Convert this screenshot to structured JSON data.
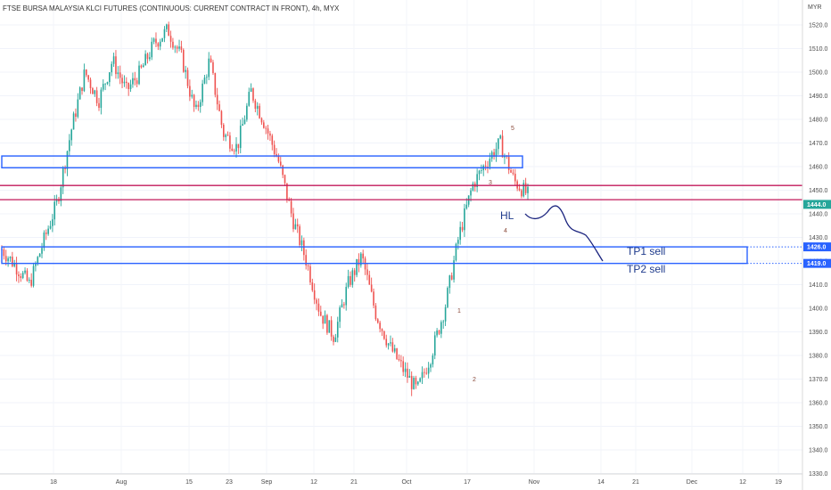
{
  "chart_data": {
    "type": "candlestick",
    "title": "FTSE BURSA MALAYSIA KLCI FUTURES (CONTINUOUS: CURRENT CONTRACT IN FRONT), 4h, MYX",
    "currency": "MYR",
    "y_ticks": [
      1520,
      1510,
      1500,
      1490,
      1480,
      1470,
      1460,
      1450,
      1440,
      1430,
      1420,
      1410,
      1400,
      1390,
      1380,
      1370,
      1360,
      1350,
      1340,
      1330
    ],
    "y_tick_labels": [
      "1520.0",
      "1510.0",
      "1500.0",
      "1490.0",
      "1480.0",
      "1470.0",
      "1460.0",
      "1450.0",
      "1440.0",
      "1430.0",
      "1420.0",
      "1410.0",
      "1400.0",
      "1390.0",
      "1380.0",
      "1370.0",
      "1360.0",
      "1350.0",
      "1340.0",
      "1330.0"
    ],
    "ylim": [
      1328,
      1532
    ],
    "x_tick_labels": [
      "18",
      "Aug",
      "15",
      "23",
      "Sep",
      "12",
      "21",
      "Oct",
      "17",
      "Nov",
      "14",
      "21",
      "Dec",
      "12",
      "19"
    ],
    "price_tags": [
      {
        "label": "1444.0",
        "value": 1444,
        "color": "#26a69a"
      },
      {
        "label": "1426.0",
        "value": 1426,
        "color": "#2962ff"
      },
      {
        "label": "1419.0",
        "value": 1419,
        "color": "#2962ff"
      }
    ],
    "zones": [
      {
        "low": 1459.5,
        "high": 1464.5,
        "color": "#2962ff"
      },
      {
        "low": 1419,
        "high": 1426,
        "color": "#2962ff",
        "note": "TP1 sell"
      }
    ],
    "lines": [
      {
        "value": 1452,
        "color": "#c2185b"
      },
      {
        "value": 1446,
        "color": "#c2185b"
      }
    ],
    "wave_labels": [
      "1",
      "2",
      "3",
      "4",
      "5"
    ],
    "annotations": [
      "HL",
      "TP1 sell",
      "TP2 sell"
    ],
    "anchor_path": [
      1425,
      1418,
      1410,
      1428,
      1445,
      1475,
      1500,
      1488,
      1505,
      1492,
      1500,
      1512,
      1518,
      1506,
      1482,
      1505,
      1474,
      1468,
      1492,
      1478,
      1462,
      1438,
      1420,
      1398,
      1388,
      1410,
      1422,
      1398,
      1384,
      1374,
      1365,
      1380,
      1400,
      1430,
      1452,
      1462,
      1470,
      1454,
      1448
    ],
    "up_color": "#26a69a",
    "down_color": "#ef5350"
  }
}
